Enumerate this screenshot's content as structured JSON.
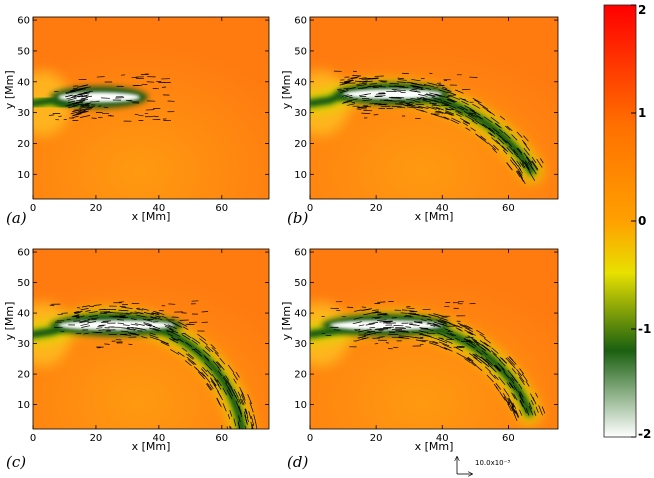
{
  "chart_data": {
    "type": "heatmap",
    "panels": [
      {
        "label": "(a)",
        "xlabel": "x [Mm]",
        "ylabel": "y [Mm]",
        "xlim": [
          0,
          75
        ],
        "ylim": [
          2,
          61
        ],
        "xticks": [
          "0",
          "20",
          "40",
          "60"
        ],
        "yticks": [
          "10",
          "20",
          "30",
          "40",
          "50",
          "60"
        ],
        "dark_band": {
          "arc_center": [
            30,
            -40
          ],
          "radius": 75,
          "theta_deg": [
            100,
            105
          ],
          "core_x": [
            8,
            34
          ],
          "core_y": 35
        }
      },
      {
        "label": "(b)",
        "xlabel": "x [Mm]",
        "ylabel": "y [Mm]",
        "xlim": [
          0,
          75
        ],
        "ylim": [
          2,
          61
        ],
        "xticks": [
          "0",
          "20",
          "40",
          "60"
        ],
        "yticks": [
          "10",
          "20",
          "30",
          "40",
          "50",
          "60"
        ],
        "dark_band": {
          "arc_center": [
            22,
            -15
          ],
          "radius": 52,
          "theta_deg": [
            30,
            105
          ],
          "core_x": [
            10,
            40
          ],
          "core_y": 36
        }
      },
      {
        "label": "(c)",
        "xlabel": "x [Mm]",
        "ylabel": "y [Mm]",
        "xlim": [
          0,
          75
        ],
        "ylim": [
          2,
          61
        ],
        "xticks": [
          "0",
          "20",
          "40",
          "60"
        ],
        "yticks": [
          "10",
          "20",
          "30",
          "40",
          "50",
          "60"
        ],
        "dark_band": {
          "arc_center": [
            24,
            -5
          ],
          "radius": 43,
          "theta_deg": [
            -5,
            105
          ],
          "core_x": [
            8,
            45
          ],
          "core_y": 36
        }
      },
      {
        "label": "(d)",
        "xlabel": "x [Mm]",
        "ylabel": "y [Mm]",
        "xlim": [
          0,
          75
        ],
        "ylim": [
          2,
          61
        ],
        "xticks": [
          "0",
          "20",
          "40",
          "60"
        ],
        "yticks": [
          "10",
          "20",
          "30",
          "40",
          "50",
          "60"
        ],
        "dark_band": {
          "arc_center": [
            24,
            -8
          ],
          "radius": 45,
          "theta_deg": [
            20,
            105
          ],
          "core_x": [
            6,
            40
          ],
          "core_y": 36
        }
      }
    ],
    "colorbar": {
      "min": -2,
      "max": 2,
      "ticks": [
        "2",
        "1",
        "0",
        "-1",
        "-2"
      ],
      "colormap": [
        "#ffffff",
        "#1a6010",
        "#e8e000",
        "#ff9000",
        "#ff0000"
      ]
    },
    "vector_scale_label": "10.0x10⁻³"
  }
}
